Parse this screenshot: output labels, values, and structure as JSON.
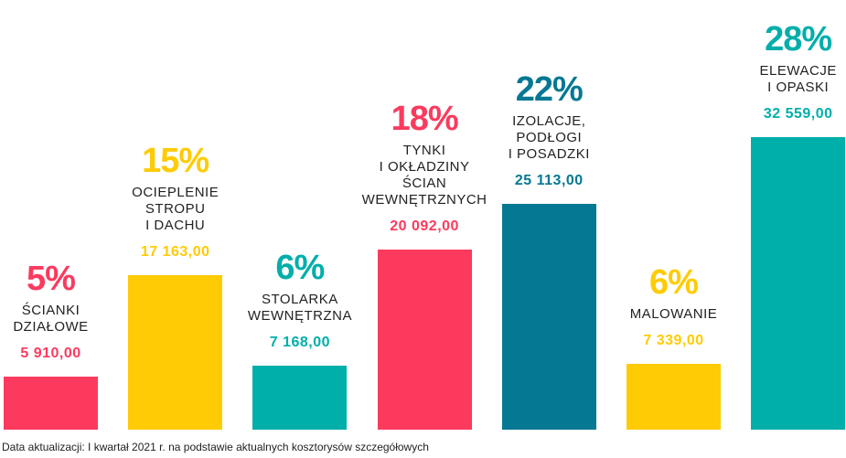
{
  "chart_data": {
    "type": "bar",
    "title": "",
    "xlabel": "",
    "ylabel": "",
    "ylim": [
      0,
      34000
    ],
    "grid": false,
    "categories": [
      [
        "ŚCIANKI",
        "DZIAŁOWE"
      ],
      [
        "OCIEPLENIE",
        "STROPU",
        "I DACHU"
      ],
      [
        "STOLARKA",
        "WEWNĘTRZNA"
      ],
      [
        "TYNKI",
        "I OKŁADZINY",
        "ŚCIAN",
        "WEWNĘTRZNYCH"
      ],
      [
        "IZOLACJE,",
        "PODŁOGI",
        "I POSADZKI"
      ],
      [
        "MALOWANIE"
      ],
      [
        "ELEWACJE",
        "I OPASKI"
      ]
    ],
    "values": [
      5910,
      17163,
      7168,
      20092,
      25113,
      7339,
      32559
    ],
    "value_labels": [
      "5 910,00",
      "17 163,00",
      "7 168,00",
      "20 092,00",
      "25 113,00",
      "7 339,00",
      "32 559,00"
    ],
    "percent_labels": [
      "5%",
      "15%",
      "6%",
      "18%",
      "22%",
      "6%",
      "28%"
    ],
    "colors": [
      "#fb3a5e",
      "#ffcb05",
      "#00aeaa",
      "#fb3a5e",
      "#057893",
      "#ffcb05",
      "#00aeaa"
    ]
  },
  "footnote": "Data aktualizacji: I kwartał 2021 r. na podstawie aktualnych kosztorysów szczegółowych"
}
